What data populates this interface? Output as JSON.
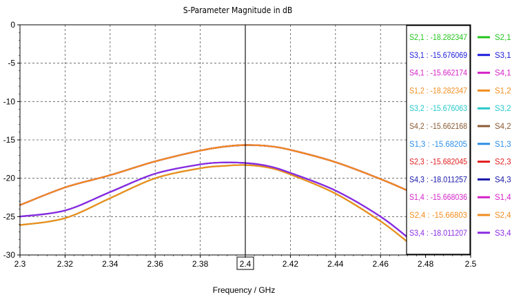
{
  "chart_data": {
    "type": "line",
    "title": "S-Parameter Magnitude in dB",
    "xlabel": "Frequency / GHz",
    "ylabel": "",
    "xlim": [
      2.3,
      2.5
    ],
    "ylim": [
      -30,
      0
    ],
    "xticks": [
      "2.3",
      "2.32",
      "2.34",
      "2.36",
      "2.38",
      "2.4",
      "2.42",
      "2.44",
      "2.46",
      "2.48",
      "2.5"
    ],
    "yticks": [
      "0",
      "-5",
      "-10",
      "-15",
      "-20",
      "-25",
      "-30"
    ],
    "grid": true,
    "marker": {
      "x": 2.4,
      "label": "2.4"
    },
    "legend_placement": "right",
    "marker_readout": [
      {
        "text": "S2,1 : -18.282347",
        "color": "#22c41c"
      },
      {
        "text": "S3,1 : -15.676069",
        "color": "#1a1adb"
      },
      {
        "text": "S4,1 : -15.662174",
        "color": "#d321c7"
      },
      {
        "text": "S1,2 : -18.282347",
        "color": "#f08c1e"
      },
      {
        "text": "S3,2 : -15.676063",
        "color": "#25c8c8"
      },
      {
        "text": "S4,2 : -15.662168",
        "color": "#8a5a32"
      },
      {
        "text": "S1,3 : -15.68205",
        "color": "#2b8ee6"
      },
      {
        "text": "S2,3 : -15.682045",
        "color": "#e11b1b"
      },
      {
        "text": "S4,3 : -18.011257",
        "color": "#1515a8"
      },
      {
        "text": "S1,4 : -15.668036",
        "color": "#d321c7"
      },
      {
        "text": "S2,4 : -15.66803",
        "color": "#f08c1e"
      },
      {
        "text": "S3,4 : -18.011207",
        "color": "#8a2be2"
      }
    ],
    "series": [
      {
        "name": "S2,1",
        "color": "#22c41c",
        "x": [
          2.3,
          2.32,
          2.34,
          2.36,
          2.38,
          2.39,
          2.4,
          2.41,
          2.42,
          2.44,
          2.46,
          2.472
        ],
        "y": [
          -26.1,
          -25.2,
          -22.6,
          -20.0,
          -18.7,
          -18.4,
          -18.28,
          -18.6,
          -19.5,
          -22.0,
          -25.6,
          -28.3
        ]
      },
      {
        "name": "S3,1",
        "color": "#1a1adb",
        "x": [
          2.3,
          2.32,
          2.34,
          2.36,
          2.38,
          2.39,
          2.4,
          2.41,
          2.42,
          2.44,
          2.46,
          2.472
        ],
        "y": [
          -23.5,
          -21.2,
          -19.6,
          -17.8,
          -16.4,
          -15.9,
          -15.68,
          -15.8,
          -16.3,
          -17.9,
          -20.1,
          -21.6
        ]
      },
      {
        "name": "S4,1",
        "color": "#d321c7",
        "x": [
          2.3,
          2.32,
          2.34,
          2.36,
          2.38,
          2.39,
          2.4,
          2.41,
          2.42,
          2.44,
          2.46,
          2.472
        ],
        "y": [
          -23.5,
          -21.2,
          -19.6,
          -17.8,
          -16.4,
          -15.9,
          -15.66,
          -15.8,
          -16.3,
          -17.9,
          -20.1,
          -21.6
        ]
      },
      {
        "name": "S1,2",
        "color": "#f08c1e",
        "x": [
          2.3,
          2.32,
          2.34,
          2.36,
          2.38,
          2.39,
          2.4,
          2.41,
          2.42,
          2.44,
          2.46,
          2.472
        ],
        "y": [
          -26.1,
          -25.2,
          -22.6,
          -20.0,
          -18.7,
          -18.4,
          -18.28,
          -18.6,
          -19.5,
          -22.0,
          -25.6,
          -28.3
        ]
      },
      {
        "name": "S3,2",
        "color": "#25c8c8",
        "x": [
          2.3,
          2.32,
          2.34,
          2.36,
          2.38,
          2.39,
          2.4,
          2.41,
          2.42,
          2.44,
          2.46,
          2.472
        ],
        "y": [
          -23.5,
          -21.2,
          -19.6,
          -17.8,
          -16.4,
          -15.9,
          -15.68,
          -15.8,
          -16.3,
          -17.9,
          -20.1,
          -21.6
        ]
      },
      {
        "name": "S4,2",
        "color": "#8a5a32",
        "x": [
          2.3,
          2.32,
          2.34,
          2.36,
          2.38,
          2.39,
          2.4,
          2.41,
          2.42,
          2.44,
          2.46,
          2.472
        ],
        "y": [
          -23.5,
          -21.2,
          -19.6,
          -17.8,
          -16.4,
          -15.9,
          -15.66,
          -15.8,
          -16.3,
          -17.9,
          -20.1,
          -21.6
        ]
      },
      {
        "name": "S1,3",
        "color": "#2b8ee6",
        "x": [
          2.3,
          2.32,
          2.34,
          2.36,
          2.38,
          2.39,
          2.4,
          2.41,
          2.42,
          2.44,
          2.46,
          2.472
        ],
        "y": [
          -23.5,
          -21.2,
          -19.6,
          -17.8,
          -16.4,
          -15.9,
          -15.68,
          -15.8,
          -16.3,
          -17.9,
          -20.1,
          -21.6
        ]
      },
      {
        "name": "S2,3",
        "color": "#e11b1b",
        "x": [
          2.3,
          2.32,
          2.34,
          2.36,
          2.38,
          2.39,
          2.4,
          2.41,
          2.42,
          2.44,
          2.46,
          2.472
        ],
        "y": [
          -23.5,
          -21.2,
          -19.6,
          -17.8,
          -16.4,
          -15.9,
          -15.68,
          -15.8,
          -16.3,
          -17.9,
          -20.1,
          -21.6
        ]
      },
      {
        "name": "S4,3",
        "color": "#1515a8",
        "x": [
          2.3,
          2.32,
          2.34,
          2.36,
          2.38,
          2.39,
          2.4,
          2.41,
          2.42,
          2.44,
          2.46,
          2.472
        ],
        "y": [
          -25.0,
          -24.2,
          -21.8,
          -19.4,
          -18.2,
          -17.95,
          -18.01,
          -18.4,
          -19.3,
          -21.6,
          -25.0,
          -27.7
        ]
      },
      {
        "name": "S1,4",
        "color": "#d321c7",
        "x": [
          2.3,
          2.32,
          2.34,
          2.36,
          2.38,
          2.39,
          2.4,
          2.41,
          2.42,
          2.44,
          2.46,
          2.472
        ],
        "y": [
          -23.5,
          -21.2,
          -19.6,
          -17.8,
          -16.4,
          -15.9,
          -15.67,
          -15.8,
          -16.3,
          -17.9,
          -20.1,
          -21.6
        ]
      },
      {
        "name": "S2,4",
        "color": "#f08c1e",
        "x": [
          2.3,
          2.32,
          2.34,
          2.36,
          2.38,
          2.39,
          2.4,
          2.41,
          2.42,
          2.44,
          2.46,
          2.472
        ],
        "y": [
          -23.5,
          -21.2,
          -19.6,
          -17.8,
          -16.4,
          -15.9,
          -15.67,
          -15.8,
          -16.3,
          -17.9,
          -20.1,
          -21.6
        ]
      },
      {
        "name": "S3,4",
        "color": "#8a2be2",
        "x": [
          2.3,
          2.32,
          2.34,
          2.36,
          2.38,
          2.39,
          2.4,
          2.41,
          2.42,
          2.44,
          2.46,
          2.472
        ],
        "y": [
          -25.0,
          -24.2,
          -21.8,
          -19.4,
          -18.2,
          -17.95,
          -18.01,
          -18.4,
          -19.3,
          -21.6,
          -25.0,
          -27.7
        ]
      }
    ]
  }
}
